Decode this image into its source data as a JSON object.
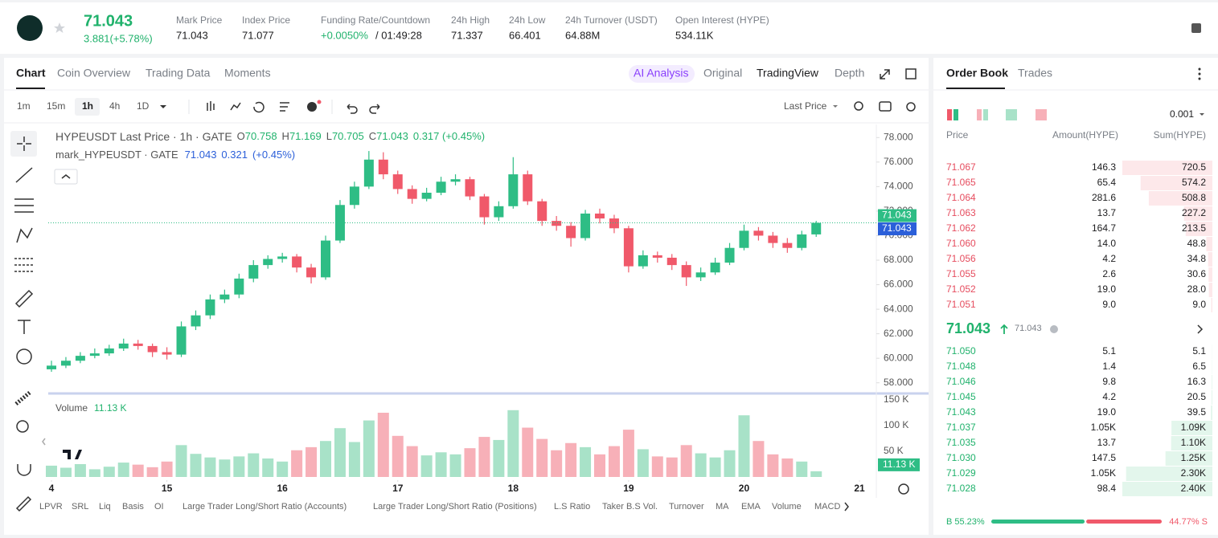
{
  "header": {
    "price": "71.043",
    "change": "3.881(+5.78%)",
    "stats": [
      {
        "label": "Mark Price",
        "value": "71.043"
      },
      {
        "label": "Index Price",
        "value": "71.077"
      },
      {
        "label": "Funding Rate/Countdown",
        "value": "+0.0050%",
        "extra": "/ 01:49:28"
      },
      {
        "label": "24h High",
        "value": "71.337"
      },
      {
        "label": "24h Low",
        "value": "66.401"
      },
      {
        "label": "24h Turnover (USDT)",
        "value": "64.88M"
      },
      {
        "label": "Open Interest (HYPE)",
        "value": "534.11K"
      }
    ]
  },
  "chart_panel": {
    "tabs": [
      "Chart",
      "Coin Overview",
      "Trading Data",
      "Moments"
    ],
    "views": [
      "AI Analysis",
      "Original",
      "TradingView",
      "Depth"
    ],
    "intervals": [
      "1m",
      "15m",
      "1h",
      "4h",
      "1D"
    ],
    "price_source": "Last Price",
    "legend": {
      "title": "HYPEUSDT Last Price · 1h · GATE",
      "ohlc": [
        {
          "key": "O",
          "value": "70.758"
        },
        {
          "key": "H",
          "value": "71.169"
        },
        {
          "key": "L",
          "value": "70.705"
        },
        {
          "key": "C",
          "value": "71.043"
        }
      ],
      "change": "0.317 (+0.45%)"
    },
    "mark_legend": {
      "title": "mark_HYPEUSDT · GATE",
      "price": "71.043",
      "change": "0.321",
      "pct": "(+0.45%)"
    },
    "indicators": [
      "LPVR",
      "SRL",
      "Liq",
      "Basis",
      "OI",
      "Large Trader Long/Short Ratio (Accounts)",
      "Large Trader Long/Short Ratio (Positions)",
      "L.S Ratio",
      "Taker B.S Vol.",
      "Turnover",
      "MA",
      "EMA",
      "Volume",
      "MACD"
    ]
  },
  "chart_data": [
    {
      "type": "candlestick",
      "x": [
        0,
        3,
        6,
        9,
        12,
        15,
        18,
        21,
        24,
        27,
        30,
        33,
        36,
        39,
        42,
        45,
        48,
        51,
        54,
        57,
        60,
        63,
        66,
        69,
        72,
        75,
        78,
        81,
        84,
        87,
        90,
        93,
        96,
        99,
        102,
        105,
        108,
        111,
        114,
        117,
        120,
        123,
        126,
        129,
        132,
        135,
        138,
        141,
        144,
        147,
        150,
        153,
        156,
        159
      ],
      "open": [
        59.1,
        59.4,
        59.8,
        60.2,
        60.4,
        60.8,
        61.2,
        61.0,
        60.5,
        60.3,
        62.6,
        63.5,
        64.8,
        65.2,
        66.5,
        67.6,
        68.1,
        68.3,
        67.4,
        66.6,
        69.6,
        72.5,
        74.0,
        76.2,
        75.0,
        73.8,
        73.0,
        73.5,
        74.4,
        74.6,
        73.2,
        71.5,
        72.4,
        75.0,
        72.8,
        71.2,
        70.8,
        69.8,
        71.8,
        71.4,
        70.6,
        67.5,
        68.4,
        68.2,
        67.6,
        66.6,
        67.0,
        67.8,
        69.0,
        70.4,
        70.0,
        69.4,
        69.0,
        70.1
      ],
      "high": [
        59.8,
        60.1,
        60.5,
        60.8,
        61.1,
        61.6,
        61.5,
        61.2,
        60.9,
        63.0,
        63.9,
        65.2,
        65.6,
        66.9,
        68.0,
        68.4,
        68.6,
        68.5,
        67.7,
        70.0,
        72.9,
        74.4,
        76.9,
        76.8,
        75.3,
        74.1,
        73.9,
        74.8,
        75.0,
        74.8,
        73.4,
        72.8,
        76.4,
        75.3,
        73.0,
        71.6,
        71.1,
        72.1,
        72.2,
        71.7,
        70.8,
        68.8,
        68.7,
        68.5,
        67.9,
        67.4,
        68.2,
        69.4,
        70.9,
        70.7,
        70.3,
        69.8,
        70.4,
        71.2
      ],
      "low": [
        58.9,
        59.2,
        59.6,
        60.0,
        60.2,
        60.6,
        60.7,
        60.1,
        59.9,
        60.1,
        62.3,
        63.2,
        64.5,
        64.9,
        66.2,
        67.3,
        67.8,
        67.0,
        66.1,
        66.4,
        69.4,
        72.2,
        73.8,
        74.6,
        73.4,
        72.6,
        72.8,
        73.3,
        74.1,
        72.9,
        70.9,
        71.2,
        72.2,
        72.5,
        70.8,
        70.4,
        69.1,
        69.6,
        71.0,
        70.2,
        67.0,
        67.3,
        67.8,
        67.2,
        65.9,
        66.3,
        66.8,
        67.6,
        68.8,
        69.6,
        69.0,
        68.6,
        68.8,
        69.9
      ],
      "close": [
        59.4,
        59.8,
        60.2,
        60.4,
        60.8,
        61.2,
        61.0,
        60.5,
        60.3,
        62.6,
        63.5,
        64.8,
        65.2,
        66.5,
        67.6,
        68.1,
        68.3,
        67.4,
        66.6,
        69.6,
        72.5,
        74.0,
        76.2,
        75.0,
        73.8,
        73.0,
        73.5,
        74.4,
        74.6,
        73.2,
        71.5,
        72.4,
        75.0,
        72.8,
        71.2,
        70.8,
        69.8,
        71.8,
        71.4,
        70.6,
        67.5,
        68.4,
        68.2,
        67.6,
        66.6,
        67.0,
        67.8,
        69.0,
        70.4,
        70.0,
        69.4,
        69.0,
        70.1,
        71.043
      ],
      "xlim": [
        -0.67,
        171.5
      ],
      "xticks": [
        {
          "value": 0,
          "label": "4"
        },
        {
          "value": 24,
          "label": "15"
        },
        {
          "value": 48,
          "label": "16"
        },
        {
          "value": 72,
          "label": "17"
        },
        {
          "value": 96,
          "label": "18"
        },
        {
          "value": 120,
          "label": "19"
        },
        {
          "value": 144,
          "label": "20"
        },
        {
          "value": 168,
          "label": "21"
        }
      ],
      "ylim": [
        57,
        79
      ],
      "yticks": [
        {
          "value": 58,
          "label": "58.000"
        },
        {
          "value": 60,
          "label": "60.000"
        },
        {
          "value": 62,
          "label": "62.000"
        },
        {
          "value": 64,
          "label": "64.000"
        },
        {
          "value": 66,
          "label": "66.000"
        },
        {
          "value": 68,
          "label": "68.000"
        },
        {
          "value": 70,
          "label": "70.000"
        },
        {
          "value": 72,
          "label": "72.000"
        },
        {
          "value": 74,
          "label": "74.000"
        },
        {
          "value": 76,
          "label": "76.000"
        },
        {
          "value": 78,
          "label": "78.000"
        }
      ],
      "last_price_label": "71.043",
      "mark_price_label": "71.043",
      "up_color": "#2ebd85",
      "down_color": "#f0596a",
      "grid": false
    },
    {
      "type": "bar",
      "title": "Volume",
      "current_label": "11.13 K",
      "x": [
        0,
        3,
        6,
        9,
        12,
        15,
        18,
        21,
        24,
        27,
        30,
        33,
        36,
        39,
        42,
        45,
        48,
        51,
        54,
        57,
        60,
        63,
        66,
        69,
        72,
        75,
        78,
        81,
        84,
        87,
        90,
        93,
        96,
        99,
        102,
        105,
        108,
        111,
        114,
        117,
        120,
        123,
        126,
        129,
        132,
        135,
        138,
        141,
        144,
        147,
        150,
        153,
        156,
        159
      ],
      "values": [
        22000,
        18000,
        25000,
        15000,
        20000,
        28000,
        24000,
        19000,
        30000,
        62000,
        45000,
        38000,
        34000,
        40000,
        46000,
        36000,
        30000,
        52000,
        58000,
        70000,
        95000,
        68000,
        110000,
        125000,
        80000,
        60000,
        42000,
        48000,
        44000,
        56000,
        78000,
        72000,
        130000,
        96000,
        74000,
        52000,
        66000,
        58000,
        44000,
        60000,
        92000,
        54000,
        40000,
        38000,
        62000,
        46000,
        38000,
        52000,
        120000,
        70000,
        44000,
        36000,
        30000,
        11130
      ],
      "xlim": [
        -0.67,
        171.5
      ],
      "ylim": [
        0,
        150000
      ],
      "yticks": [
        {
          "value": 50000,
          "label": "50 K"
        },
        {
          "value": 100000,
          "label": "100 K"
        },
        {
          "value": 150000,
          "label": "150 K"
        }
      ],
      "up_color": "#a8e2c8",
      "down_color": "#f7b0b8"
    }
  ],
  "order_book": {
    "tabs": [
      "Order Book",
      "Trades"
    ],
    "precision": "0.001",
    "columns": [
      "Price",
      "Amount(HYPE)",
      "Sum(HYPE)"
    ],
    "asks": [
      [
        "71.067",
        "146.3",
        "720.5"
      ],
      [
        "71.065",
        "65.4",
        "574.2"
      ],
      [
        "71.064",
        "281.6",
        "508.8"
      ],
      [
        "71.063",
        "13.7",
        "227.2"
      ],
      [
        "71.062",
        "164.7",
        "213.5"
      ],
      [
        "71.060",
        "14.0",
        "48.8"
      ],
      [
        "71.056",
        "4.2",
        "34.8"
      ],
      [
        "71.055",
        "2.6",
        "30.6"
      ],
      [
        "71.052",
        "19.0",
        "28.0"
      ],
      [
        "71.051",
        "9.0",
        "9.0"
      ]
    ],
    "last_price": "71.043",
    "mark_price": "71.043",
    "bids": [
      [
        "71.050",
        "5.1",
        "5.1"
      ],
      [
        "71.048",
        "1.4",
        "6.5"
      ],
      [
        "71.046",
        "9.8",
        "16.3"
      ],
      [
        "71.045",
        "4.2",
        "20.5"
      ],
      [
        "71.043",
        "19.0",
        "39.5"
      ],
      [
        "71.037",
        "1.05K",
        "1.09K"
      ],
      [
        "71.035",
        "13.7",
        "1.10K"
      ],
      [
        "71.030",
        "147.5",
        "1.25K"
      ],
      [
        "71.029",
        "1.05K",
        "2.30K"
      ],
      [
        "71.028",
        "98.4",
        "2.40K"
      ]
    ],
    "buy_ratio": {
      "value": 55.23,
      "label": "B 55.23%"
    },
    "sell_ratio": {
      "value": 44.77,
      "label": "44.77% S"
    }
  }
}
